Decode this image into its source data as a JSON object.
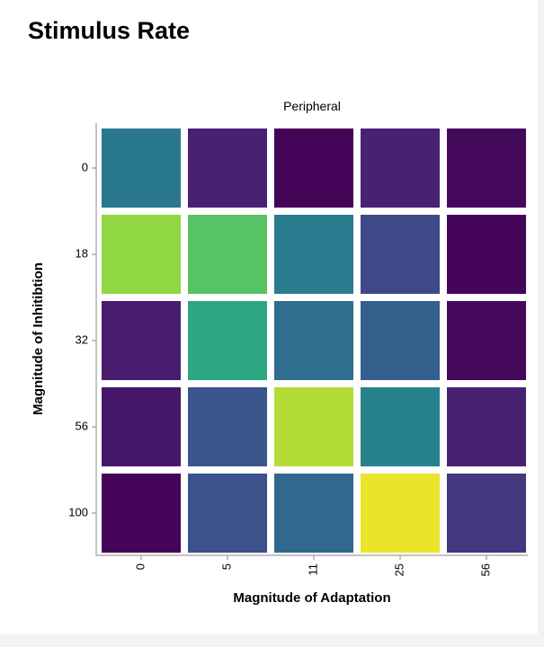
{
  "page": {
    "title": "Stimulus Rate"
  },
  "chart_data": {
    "type": "heatmap",
    "title": "Peripheral",
    "xlabel": "Magnitude of Adaptation",
    "ylabel": "Magnitude of Inhitibtion",
    "x_categories": [
      "0",
      "5",
      "11",
      "25",
      "56"
    ],
    "y_categories": [
      "0",
      "18",
      "32",
      "56",
      "100"
    ],
    "colormap": "viridis",
    "legend": "none",
    "values": [
      [
        0.5,
        0.12,
        0.01,
        0.12,
        0.03
      ],
      [
        0.88,
        0.8,
        0.52,
        0.28,
        0.02
      ],
      [
        0.1,
        0.7,
        0.45,
        0.38,
        0.03
      ],
      [
        0.08,
        0.33,
        0.92,
        0.55,
        0.12
      ],
      [
        0.01,
        0.32,
        0.43,
        0.98,
        0.2
      ]
    ]
  }
}
